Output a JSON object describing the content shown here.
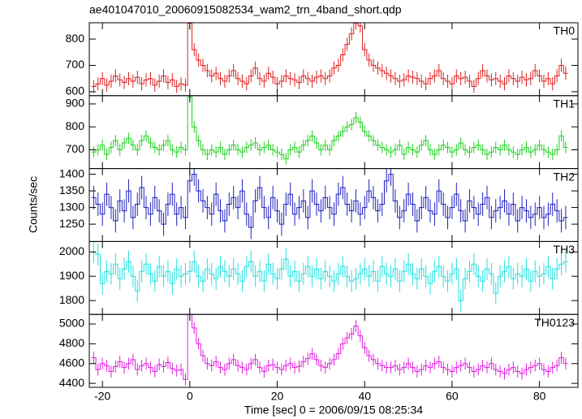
{
  "chart_data": {
    "type": "step",
    "title": "ae401047010_20060915082534_wam2_trn_4band_short.qdp",
    "xlabel": "Time [sec] 0 = 2006/09/15 08:25:34",
    "ylabel": "Counts/sec",
    "xlim": [
      -23,
      88.8
    ],
    "xticks": [
      -20,
      0,
      20,
      40,
      60,
      80
    ],
    "x": [
      -22,
      -21,
      -20,
      -19,
      -18,
      -17,
      -16,
      -15,
      -14,
      -13,
      -12,
      -11,
      -10,
      -9,
      -8,
      -7,
      -6,
      -5,
      -4,
      -3,
      -2,
      -1,
      0,
      1,
      2,
      3,
      4,
      5,
      6,
      7,
      8,
      9,
      10,
      11,
      12,
      13,
      14,
      15,
      16,
      17,
      18,
      19,
      20,
      21,
      22,
      23,
      24,
      25,
      26,
      27,
      28,
      29,
      30,
      31,
      32,
      33,
      34,
      35,
      36,
      37,
      38,
      39,
      40,
      41,
      42,
      43,
      44,
      45,
      46,
      47,
      48,
      49,
      50,
      51,
      52,
      53,
      54,
      55,
      56,
      57,
      58,
      59,
      60,
      61,
      62,
      63,
      64,
      65,
      66,
      67,
      68,
      69,
      70,
      71,
      72,
      73,
      74,
      75,
      76,
      77,
      78,
      79,
      80,
      81,
      82,
      83,
      84,
      85,
      86
    ],
    "panels": [
      {
        "name": "TH0",
        "color": "#e02020",
        "error": 25,
        "ylim": [
          585,
          862
        ],
        "yticks": [
          600,
          700,
          800
        ],
        "values": [
          620,
          630,
          650,
          625,
          640,
          660,
          645,
          635,
          650,
          640,
          655,
          630,
          645,
          650,
          625,
          640,
          660,
          635,
          645,
          620,
          630,
          625,
          860,
          760,
          720,
          700,
          680,
          660,
          670,
          650,
          640,
          660,
          680,
          650,
          640,
          630,
          660,
          690,
          650,
          640,
          670,
          655,
          630,
          640,
          660,
          650,
          645,
          635,
          660,
          650,
          640,
          655,
          660,
          650,
          660,
          690,
          700,
          740,
          780,
          820,
          860,
          850,
          760,
          720,
          700,
          690,
          680,
          670,
          660,
          650,
          640,
          645,
          660,
          655,
          650,
          640,
          630,
          650,
          660,
          680,
          650,
          640,
          630,
          660,
          650,
          655,
          640,
          620,
          650,
          680,
          660,
          645,
          650,
          640,
          630,
          660,
          650,
          640,
          655,
          645,
          650,
          680,
          660,
          640,
          650,
          630,
          660,
          700,
          670
        ]
      },
      {
        "name": "TH1",
        "color": "#20d020",
        "error": 25,
        "ylim": [
          618,
          936
        ],
        "yticks": [
          700,
          800,
          900
        ],
        "values": [
          690,
          700,
          720,
          680,
          710,
          740,
          700,
          730,
          750,
          720,
          700,
          740,
          760,
          730,
          710,
          700,
          720,
          740,
          700,
          690,
          710,
          700,
          930,
          800,
          740,
          700,
          680,
          700,
          690,
          710,
          680,
          700,
          720,
          700,
          690,
          710,
          720,
          730,
          700,
          710,
          720,
          700,
          690,
          680,
          660,
          700,
          710,
          690,
          720,
          740,
          760,
          730,
          700,
          720,
          700,
          740,
          760,
          780,
          800,
          810,
          840,
          820,
          780,
          760,
          740,
          720,
          710,
          700,
          690,
          700,
          720,
          680,
          710,
          700,
          690,
          720,
          740,
          700,
          680,
          700,
          720,
          710,
          690,
          700,
          730,
          700,
          690,
          710,
          720,
          700,
          680,
          690,
          710,
          700,
          720,
          700,
          690,
          680,
          700,
          710,
          690,
          700,
          720,
          700,
          690,
          680,
          700,
          760,
          710
        ]
      },
      {
        "name": "TH2",
        "color": "#2020c0",
        "error": 35,
        "ylim": [
          1198,
          1417
        ],
        "yticks": [
          1250,
          1300,
          1350,
          1400
        ],
        "values": [
          1330,
          1310,
          1280,
          1340,
          1300,
          1260,
          1320,
          1290,
          1350,
          1270,
          1310,
          1360,
          1300,
          1280,
          1330,
          1290,
          1250,
          1310,
          1340,
          1280,
          1300,
          1270,
          1380,
          1400,
          1350,
          1320,
          1300,
          1280,
          1340,
          1290,
          1260,
          1310,
          1330,
          1300,
          1350,
          1280,
          1240,
          1320,
          1360,
          1300,
          1270,
          1330,
          1290,
          1250,
          1310,
          1340,
          1280,
          1300,
          1320,
          1270,
          1350,
          1310,
          1290,
          1330,
          1300,
          1280,
          1340,
          1360,
          1310,
          1290,
          1320,
          1280,
          1300,
          1350,
          1330,
          1290,
          1310,
          1380,
          1400,
          1320,
          1270,
          1290,
          1340,
          1310,
          1260,
          1300,
          1330,
          1290,
          1280,
          1350,
          1310,
          1270,
          1300,
          1340,
          1290,
          1260,
          1320,
          1300,
          1280,
          1310,
          1330,
          1270,
          1290,
          1300,
          1320,
          1280,
          1310,
          1260,
          1300,
          1290,
          1270,
          1280,
          1300,
          1270,
          1280,
          1310,
          1290,
          1260,
          1270
        ]
      },
      {
        "name": "TH3",
        "color": "#20e0e0",
        "error": 45,
        "ylim": [
          1743,
          2043
        ],
        "yticks": [
          1800,
          1900,
          2000
        ],
        "values": [
          2000,
          1990,
          1870,
          1920,
          1910,
          1950,
          1890,
          1930,
          1960,
          1900,
          1840,
          1920,
          1950,
          1910,
          1880,
          1940,
          1900,
          1920,
          1870,
          1930,
          1900,
          1910,
          1920,
          1960,
          1900,
          1880,
          1930,
          1910,
          1890,
          1940,
          1920,
          1900,
          1930,
          1910,
          1880,
          1940,
          1960,
          1900,
          1920,
          1880,
          1950,
          1910,
          1890,
          1930,
          1970,
          1900,
          1920,
          1880,
          1910,
          1940,
          1900,
          1930,
          1890,
          1920,
          1900,
          1880,
          1910,
          1940,
          1900,
          1880,
          1890,
          1910,
          1930,
          1900,
          1920,
          1880,
          1940,
          1910,
          1900,
          1930,
          1880,
          1920,
          1950,
          1910,
          1890,
          1930,
          1900,
          1870,
          1920,
          1940,
          1900,
          1880,
          1910,
          1930,
          1800,
          1890,
          1920,
          1950,
          1900,
          1880,
          1930,
          1910,
          1830,
          1900,
          1920,
          1940,
          1890,
          1910,
          1900,
          1930,
          1880,
          1920,
          1900,
          1910,
          1940,
          1890,
          1930,
          1950,
          1960
        ]
      },
      {
        "name": "TH0123",
        "color": "#e020e0",
        "error": 60,
        "ylim": [
          4360,
          5097
        ],
        "yticks": [
          4400,
          4600,
          4800,
          5000
        ],
        "values": [
          4660,
          4540,
          4600,
          4580,
          4520,
          4570,
          4620,
          4560,
          4600,
          4640,
          4540,
          4580,
          4600,
          4560,
          4520,
          4590,
          4570,
          4610,
          4550,
          4530,
          4540,
          4440,
          5100,
          4960,
          4800,
          4680,
          4600,
          4580,
          4620,
          4560,
          4540,
          4600,
          4640,
          4580,
          4560,
          4540,
          4600,
          4640,
          4560,
          4520,
          4580,
          4590,
          4560,
          4540,
          4580,
          4600,
          4560,
          4570,
          4620,
          4650,
          4700,
          4640,
          4580,
          4560,
          4600,
          4640,
          4700,
          4800,
          4860,
          4900,
          4980,
          4880,
          4760,
          4680,
          4640,
          4600,
          4580,
          4560,
          4560,
          4580,
          4540,
          4560,
          4600,
          4560,
          4520,
          4540,
          4580,
          4560,
          4600,
          4620,
          4560,
          4540,
          4520,
          4560,
          4580,
          4600,
          4560,
          4520,
          4540,
          4580,
          4560,
          4600,
          4540,
          4520,
          4500,
          4540,
          4560,
          4520,
          4500,
          4540,
          4560,
          4580,
          4600,
          4540,
          4520,
          4560,
          4580,
          4660,
          4600
        ]
      }
    ]
  }
}
